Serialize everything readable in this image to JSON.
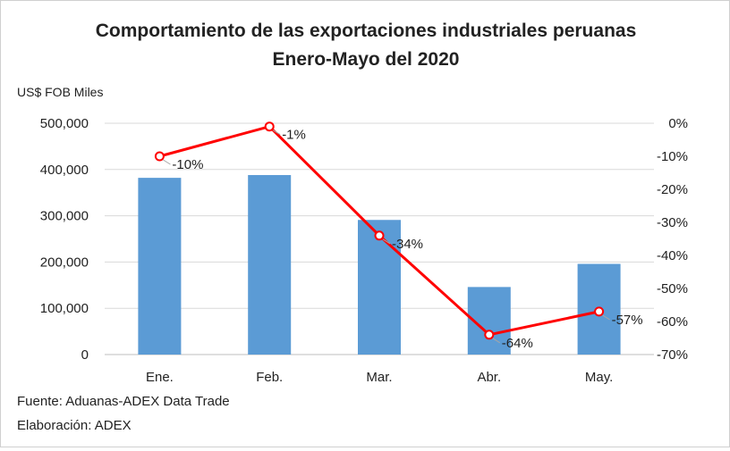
{
  "chart_data": {
    "type": "bar",
    "title": "Comportamiento de las exportaciones industriales peruanas",
    "subtitle": "Enero-Mayo del 2020",
    "y_unit_label": "US$ FOB Miles",
    "categories": [
      "Ene.",
      "Feb.",
      "Mar.",
      "Abr.",
      "May."
    ],
    "bar_series": {
      "values": [
        382000,
        388000,
        291000,
        146000,
        196000
      ],
      "color": "#5b9bd5"
    },
    "line_series": {
      "values": [
        -10,
        -1,
        -34,
        -64,
        -57
      ],
      "labels": [
        "-10%",
        "-1%",
        "-34%",
        "-64%",
        "-57%"
      ],
      "color": "#ff0000"
    },
    "left_axis": {
      "ylim": [
        0,
        500000
      ],
      "ticks": [
        "0",
        "100,000",
        "200,000",
        "300,000",
        "400,000",
        "500,000"
      ]
    },
    "right_axis": {
      "ylim": [
        -70,
        0
      ],
      "ticks": [
        "0%",
        "-10%",
        "-20%",
        "-30%",
        "-40%",
        "-50%",
        "-60%",
        "-70%"
      ]
    },
    "grid": true
  },
  "notes": {
    "source": "Fuente: Aduanas-ADEX Data Trade",
    "credit": "Elaboración: ADEX"
  }
}
